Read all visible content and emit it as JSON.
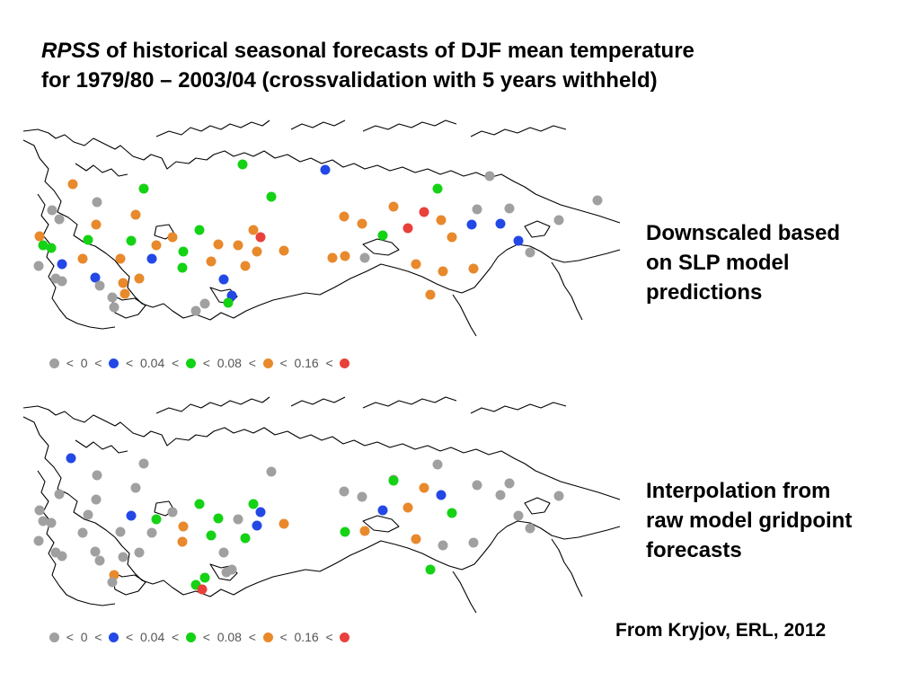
{
  "title": {
    "italic": "RPSS",
    "rest": " of historical seasonal forecasts of DJF mean temperature",
    "line2": "for 1979/80 – 2003/04 (crossvalidation with 5 years withheld)"
  },
  "colors": {
    "gray": "#a0a0a0",
    "blue": "#2348e6",
    "green": "#14d214",
    "orange": "#e8892c",
    "red": "#e8403a",
    "coast": "#000000"
  },
  "legend": {
    "items": [
      {
        "color": "gray",
        "text": "  <  0  <  "
      },
      {
        "color": "blue",
        "text": "  <  0.04  <  "
      },
      {
        "color": "green",
        "text": "  <  0.08  <  "
      },
      {
        "color": "orange",
        "text": "  <  0.16  <  "
      },
      {
        "color": "red",
        "text": ""
      }
    ]
  },
  "panels": [
    {
      "label": [
        "Downscaled based",
        "on SLP model",
        "predictions"
      ],
      "stations": [
        [
          "green",
          270,
          183
        ],
        [
          "blue",
          362,
          189
        ],
        [
          "gray",
          545,
          196
        ],
        [
          "orange",
          81,
          205
        ],
        [
          "green",
          160,
          210
        ],
        [
          "green",
          487,
          210
        ],
        [
          "green",
          302,
          219
        ],
        [
          "gray",
          665,
          223
        ],
        [
          "gray",
          108,
          225
        ],
        [
          "orange",
          438,
          230
        ],
        [
          "gray",
          567,
          232
        ],
        [
          "gray",
          58,
          234
        ],
        [
          "orange",
          151,
          239
        ],
        [
          "orange",
          383,
          241
        ],
        [
          "red",
          472,
          236
        ],
        [
          "gray",
          531,
          233
        ],
        [
          "orange",
          491,
          245
        ],
        [
          "gray",
          622,
          245
        ],
        [
          "gray",
          66,
          244
        ],
        [
          "orange",
          403,
          249
        ],
        [
          "orange",
          107,
          250
        ],
        [
          "blue",
          525,
          250
        ],
        [
          "blue",
          557,
          249
        ],
        [
          "green",
          222,
          256
        ],
        [
          "red",
          454,
          254
        ],
        [
          "orange",
          282,
          256
        ],
        [
          "red",
          290,
          264
        ],
        [
          "orange",
          44,
          263
        ],
        [
          "green",
          98,
          267
        ],
        [
          "green",
          146,
          268
        ],
        [
          "orange",
          192,
          264
        ],
        [
          "green",
          426,
          262
        ],
        [
          "green",
          48,
          273
        ],
        [
          "green",
          57,
          276
        ],
        [
          "orange",
          174,
          273
        ],
        [
          "orange",
          243,
          272
        ],
        [
          "orange",
          265,
          273
        ],
        [
          "orange",
          503,
          264
        ],
        [
          "blue",
          577,
          268
        ],
        [
          "green",
          204,
          280
        ],
        [
          "gray",
          590,
          281
        ],
        [
          "orange",
          286,
          280
        ],
        [
          "orange",
          316,
          279
        ],
        [
          "orange",
          134,
          288
        ],
        [
          "blue",
          169,
          288
        ],
        [
          "orange",
          384,
          285
        ],
        [
          "gray",
          406,
          287
        ],
        [
          "orange",
          370,
          287
        ],
        [
          "orange",
          92,
          288
        ],
        [
          "orange",
          235,
          291
        ],
        [
          "gray",
          43,
          296
        ],
        [
          "blue",
          69,
          294
        ],
        [
          "orange",
          463,
          294
        ],
        [
          "orange",
          527,
          299
        ],
        [
          "green",
          203,
          298
        ],
        [
          "orange",
          273,
          296
        ],
        [
          "orange",
          493,
          302
        ],
        [
          "gray",
          62,
          310
        ],
        [
          "orange",
          155,
          310
        ],
        [
          "blue",
          106,
          309
        ],
        [
          "orange",
          137,
          315
        ],
        [
          "gray",
          111,
          318
        ],
        [
          "gray",
          69,
          313
        ],
        [
          "blue",
          249,
          311
        ],
        [
          "orange",
          139,
          327
        ],
        [
          "gray",
          125,
          331
        ],
        [
          "orange",
          479,
          328
        ],
        [
          "blue",
          258,
          329
        ],
        [
          "green",
          254,
          337
        ],
        [
          "gray",
          127,
          342
        ],
        [
          "gray",
          228,
          338
        ],
        [
          "gray",
          218,
          346
        ]
      ]
    },
    {
      "label": [
        "Interpolation from",
        "raw model gridpoint",
        "forecasts"
      ],
      "stations": [
        [
          "blue",
          79,
          510
        ],
        [
          "gray",
          160,
          516
        ],
        [
          "gray",
          487,
          517
        ],
        [
          "gray",
          302,
          525
        ],
        [
          "gray",
          108,
          529
        ],
        [
          "gray",
          438,
          534
        ],
        [
          "gray",
          567,
          538
        ],
        [
          "green",
          438,
          535
        ],
        [
          "orange",
          472,
          543
        ],
        [
          "blue",
          491,
          551
        ],
        [
          "gray",
          66,
          550
        ],
        [
          "gray",
          403,
          553
        ],
        [
          "gray",
          151,
          543
        ],
        [
          "gray",
          383,
          547
        ],
        [
          "gray",
          531,
          540
        ],
        [
          "gray",
          557,
          551
        ],
        [
          "gray",
          622,
          552
        ],
        [
          "gray",
          107,
          556
        ],
        [
          "green",
          222,
          561
        ],
        [
          "green",
          282,
          561
        ],
        [
          "gray",
          44,
          568
        ],
        [
          "gray",
          98,
          573
        ],
        [
          "blue",
          146,
          574
        ],
        [
          "gray",
          192,
          570
        ],
        [
          "blue",
          426,
          568
        ],
        [
          "gray",
          48,
          580
        ],
        [
          "gray",
          57,
          582
        ],
        [
          "green",
          174,
          578
        ],
        [
          "green",
          243,
          577
        ],
        [
          "blue",
          290,
          570
        ],
        [
          "orange",
          454,
          565
        ],
        [
          "orange",
          316,
          583
        ],
        [
          "gray",
          265,
          578
        ],
        [
          "green",
          503,
          571
        ],
        [
          "gray",
          577,
          574
        ],
        [
          "orange",
          204,
          586
        ],
        [
          "blue",
          286,
          585
        ],
        [
          "gray",
          134,
          592
        ],
        [
          "gray",
          169,
          593
        ],
        [
          "gray",
          590,
          588
        ],
        [
          "green",
          384,
          592
        ],
        [
          "orange",
          406,
          591
        ],
        [
          "gray",
          92,
          593
        ],
        [
          "green",
          235,
          596
        ],
        [
          "orange",
          203,
          603
        ],
        [
          "green",
          273,
          599
        ],
        [
          "gray",
          43,
          602
        ],
        [
          "orange",
          463,
          600
        ],
        [
          "gray",
          527,
          604
        ],
        [
          "gray",
          493,
          607
        ],
        [
          "gray",
          62,
          615
        ],
        [
          "gray",
          155,
          615
        ],
        [
          "gray",
          106,
          614
        ],
        [
          "gray",
          69,
          619
        ],
        [
          "gray",
          137,
          620
        ],
        [
          "gray",
          111,
          624
        ],
        [
          "gray",
          249,
          615
        ],
        [
          "orange",
          127,
          640
        ],
        [
          "gray",
          125,
          648
        ],
        [
          "green",
          479,
          634
        ],
        [
          "gray",
          258,
          634
        ],
        [
          "green",
          228,
          643
        ],
        [
          "green",
          218,
          651
        ],
        [
          "red",
          225,
          656
        ],
        [
          "gray",
          252,
          637
        ]
      ]
    }
  ],
  "credit": "From Kryjov, ERL, 2012"
}
